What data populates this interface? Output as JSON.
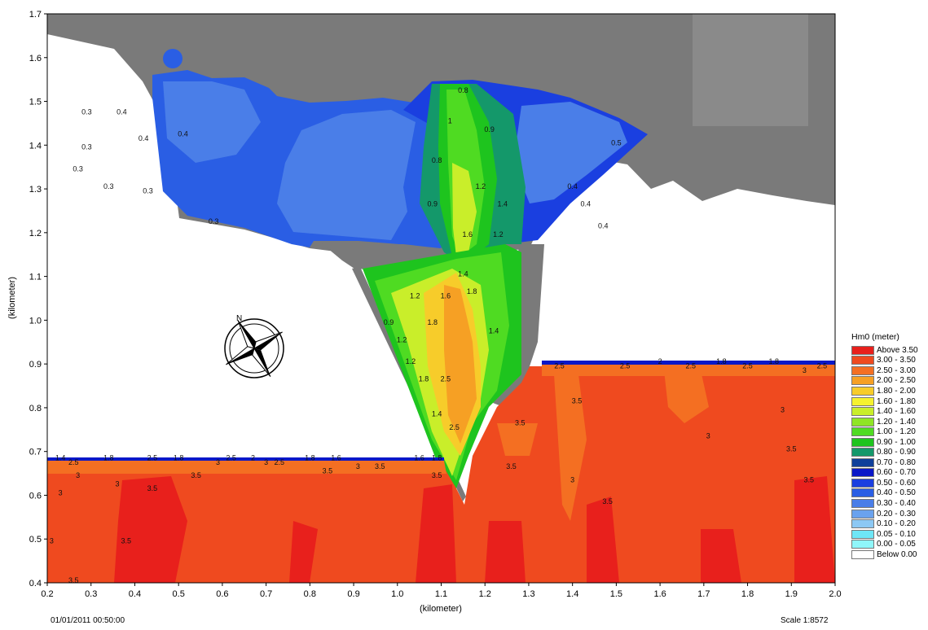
{
  "chart_data": {
    "type": "heatmap",
    "title": "",
    "xlabel": "(kilometer)",
    "ylabel": "(kilometer)",
    "xlim": [
      0.2,
      2.0
    ],
    "ylim": [
      0.4,
      1.7
    ],
    "x_ticks": [
      "0.2",
      "0.3",
      "0.4",
      "0.5",
      "0.6",
      "0.7",
      "0.8",
      "0.9",
      "1.0",
      "1.1",
      "1.2",
      "1.3",
      "1.4",
      "1.5",
      "1.6",
      "1.7",
      "1.8",
      "1.9",
      "2.0"
    ],
    "y_ticks": [
      "0.4",
      "0.5",
      "0.6",
      "0.7",
      "0.8",
      "0.9",
      "1.0",
      "1.1",
      "1.2",
      "1.3",
      "1.4",
      "1.5",
      "1.6",
      "1.7"
    ],
    "legend_title": "Hm0 (meter)",
    "legend_placement": "right",
    "legend": [
      {
        "label": "Above 3.50",
        "color": "#e8201c"
      },
      {
        "label": "3.00 - 3.50",
        "color": "#ef4a1f"
      },
      {
        "label": "2.50 - 3.00",
        "color": "#f46f22"
      },
      {
        "label": "2.00 - 2.50",
        "color": "#f6a024"
      },
      {
        "label": "1.80 - 2.00",
        "color": "#f7cc2a"
      },
      {
        "label": "1.60 - 1.80",
        "color": "#f5f22f"
      },
      {
        "label": "1.40 - 1.60",
        "color": "#c9ee2a"
      },
      {
        "label": "1.20 - 1.40",
        "color": "#8fe526"
      },
      {
        "label": "1.00 - 1.20",
        "color": "#4fdb22"
      },
      {
        "label": "0.90 - 1.00",
        "color": "#1ec41e"
      },
      {
        "label": "0.80 - 0.90",
        "color": "#14986a"
      },
      {
        "label": "0.70 - 0.80",
        "color": "#0e3f9a"
      },
      {
        "label": "0.60 - 0.70",
        "color": "#0a18c8"
      },
      {
        "label": "0.50 - 0.60",
        "color": "#1a3fe0"
      },
      {
        "label": "0.40 - 0.50",
        "color": "#2a5ee4"
      },
      {
        "label": "0.30 - 0.40",
        "color": "#4a7ee8"
      },
      {
        "label": "0.20 - 0.30",
        "color": "#6aa2ee"
      },
      {
        "label": "0.10 - 0.20",
        "color": "#8cc8f4"
      },
      {
        "label": "0.05 - 0.10",
        "color": "#6ee6f6"
      },
      {
        "label": "0.00 - 0.05",
        "color": "#8ff6fa"
      },
      {
        "label": "Below 0.00",
        "color": "#ffffff"
      }
    ],
    "contour_labels": [
      {
        "x": 0.29,
        "y": 1.47,
        "text": "0.3"
      },
      {
        "x": 0.37,
        "y": 1.47,
        "text": "0.4"
      },
      {
        "x": 0.29,
        "y": 1.39,
        "text": "0.3"
      },
      {
        "x": 0.27,
        "y": 1.34,
        "text": "0.3"
      },
      {
        "x": 0.42,
        "y": 1.41,
        "text": "0.4"
      },
      {
        "x": 0.51,
        "y": 1.42,
        "text": "0.4"
      },
      {
        "x": 0.34,
        "y": 1.3,
        "text": "0.3"
      },
      {
        "x": 0.43,
        "y": 1.29,
        "text": "0.3"
      },
      {
        "x": 0.58,
        "y": 1.22,
        "text": "0.3"
      },
      {
        "x": 1.15,
        "y": 1.52,
        "text": "0.8"
      },
      {
        "x": 1.12,
        "y": 1.45,
        "text": "1"
      },
      {
        "x": 1.21,
        "y": 1.43,
        "text": "0.9"
      },
      {
        "x": 1.09,
        "y": 1.36,
        "text": "0.8"
      },
      {
        "x": 1.19,
        "y": 1.3,
        "text": "1.2"
      },
      {
        "x": 1.24,
        "y": 1.26,
        "text": "1.4"
      },
      {
        "x": 1.08,
        "y": 1.26,
        "text": "0.9"
      },
      {
        "x": 1.16,
        "y": 1.19,
        "text": "1.6"
      },
      {
        "x": 1.23,
        "y": 1.19,
        "text": "1.2"
      },
      {
        "x": 1.4,
        "y": 1.3,
        "text": "0.4"
      },
      {
        "x": 1.43,
        "y": 1.26,
        "text": "0.4"
      },
      {
        "x": 1.5,
        "y": 1.4,
        "text": "0.5"
      },
      {
        "x": 1.47,
        "y": 1.21,
        "text": "0.4"
      },
      {
        "x": 1.15,
        "y": 1.1,
        "text": "1.4"
      },
      {
        "x": 1.17,
        "y": 1.06,
        "text": "1.8"
      },
      {
        "x": 1.11,
        "y": 1.05,
        "text": "1.6"
      },
      {
        "x": 1.04,
        "y": 1.05,
        "text": "1.2"
      },
      {
        "x": 0.98,
        "y": 0.99,
        "text": "0.9"
      },
      {
        "x": 1.01,
        "y": 0.95,
        "text": "1.2"
      },
      {
        "x": 1.08,
        "y": 0.99,
        "text": "1.8"
      },
      {
        "x": 1.22,
        "y": 0.97,
        "text": "1.4"
      },
      {
        "x": 1.03,
        "y": 0.9,
        "text": "1.2"
      },
      {
        "x": 1.06,
        "y": 0.86,
        "text": "1.8"
      },
      {
        "x": 1.11,
        "y": 0.86,
        "text": "2.5"
      },
      {
        "x": 1.09,
        "y": 0.78,
        "text": "1.4"
      },
      {
        "x": 1.13,
        "y": 0.75,
        "text": "2.5"
      },
      {
        "x": 1.28,
        "y": 0.76,
        "text": "3.5"
      },
      {
        "x": 1.37,
        "y": 0.89,
        "text": "2.5"
      },
      {
        "x": 1.41,
        "y": 0.81,
        "text": "3.5"
      },
      {
        "x": 1.52,
        "y": 0.89,
        "text": "2.5"
      },
      {
        "x": 1.6,
        "y": 0.9,
        "text": "2"
      },
      {
        "x": 1.67,
        "y": 0.89,
        "text": "2.5"
      },
      {
        "x": 1.74,
        "y": 0.9,
        "text": "1.8"
      },
      {
        "x": 1.8,
        "y": 0.89,
        "text": "2.5"
      },
      {
        "x": 1.86,
        "y": 0.9,
        "text": "1.8"
      },
      {
        "x": 1.93,
        "y": 0.88,
        "text": "3"
      },
      {
        "x": 1.97,
        "y": 0.89,
        "text": "2.5"
      },
      {
        "x": 1.88,
        "y": 0.79,
        "text": "3"
      },
      {
        "x": 1.71,
        "y": 0.73,
        "text": "3"
      },
      {
        "x": 1.9,
        "y": 0.7,
        "text": "3.5"
      },
      {
        "x": 1.94,
        "y": 0.63,
        "text": "3.5"
      },
      {
        "x": 1.4,
        "y": 0.63,
        "text": "3"
      },
      {
        "x": 1.48,
        "y": 0.58,
        "text": "3.5"
      },
      {
        "x": 1.26,
        "y": 0.66,
        "text": "3.5"
      },
      {
        "x": 0.23,
        "y": 0.68,
        "text": "1.4"
      },
      {
        "x": 0.26,
        "y": 0.67,
        "text": "2.5"
      },
      {
        "x": 0.34,
        "y": 0.68,
        "text": "1.8"
      },
      {
        "x": 0.44,
        "y": 0.68,
        "text": "2.5"
      },
      {
        "x": 0.5,
        "y": 0.68,
        "text": "1.8"
      },
      {
        "x": 0.59,
        "y": 0.67,
        "text": "3"
      },
      {
        "x": 0.62,
        "y": 0.68,
        "text": "2.5"
      },
      {
        "x": 0.67,
        "y": 0.68,
        "text": "2"
      },
      {
        "x": 0.7,
        "y": 0.67,
        "text": "3"
      },
      {
        "x": 0.73,
        "y": 0.67,
        "text": "2.5"
      },
      {
        "x": 0.8,
        "y": 0.68,
        "text": "1.8"
      },
      {
        "x": 0.86,
        "y": 0.68,
        "text": "1.6"
      },
      {
        "x": 0.91,
        "y": 0.66,
        "text": "3"
      },
      {
        "x": 0.96,
        "y": 0.66,
        "text": "3.5"
      },
      {
        "x": 1.05,
        "y": 0.68,
        "text": "1.6"
      },
      {
        "x": 1.09,
        "y": 0.68,
        "text": "1.8"
      },
      {
        "x": 0.84,
        "y": 0.65,
        "text": "3.5"
      },
      {
        "x": 0.27,
        "y": 0.64,
        "text": "3"
      },
      {
        "x": 0.36,
        "y": 0.62,
        "text": "3"
      },
      {
        "x": 0.44,
        "y": 0.61,
        "text": "3.5"
      },
      {
        "x": 0.54,
        "y": 0.64,
        "text": "3.5"
      },
      {
        "x": 0.23,
        "y": 0.6,
        "text": "3"
      },
      {
        "x": 0.21,
        "y": 0.49,
        "text": "3"
      },
      {
        "x": 0.38,
        "y": 0.49,
        "text": "3.5"
      },
      {
        "x": 0.26,
        "y": 0.4,
        "text": "3.5"
      },
      {
        "x": 1.09,
        "y": 0.64,
        "text": "3.5"
      }
    ]
  },
  "footer": {
    "timestamp": "01/01/2011 00:50:00",
    "scale": "Scale 1:8572"
  }
}
